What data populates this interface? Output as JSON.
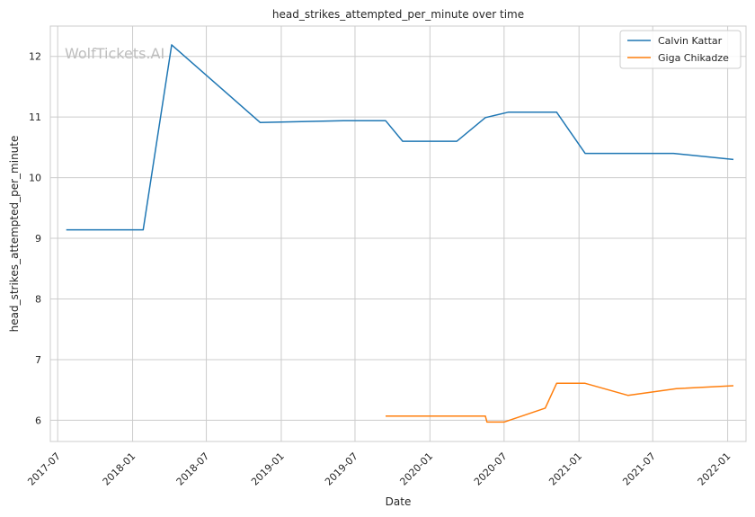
{
  "chart_data": {
    "type": "line",
    "title": "head_strikes_attempted_per_minute over time",
    "xlabel": "Date",
    "ylabel": "head_strikes_attempted_per_minute",
    "watermark": "WolfTickets.AI",
    "xlim": [
      "2017-06-13",
      "2022-02-15"
    ],
    "ylim": [
      5.65,
      12.5
    ],
    "x_ticks": [
      {
        "date": "2017-07-01",
        "label": "2017-07"
      },
      {
        "date": "2018-01-01",
        "label": "2018-01"
      },
      {
        "date": "2018-07-01",
        "label": "2018-07"
      },
      {
        "date": "2019-01-01",
        "label": "2019-01"
      },
      {
        "date": "2019-07-01",
        "label": "2019-07"
      },
      {
        "date": "2020-01-01",
        "label": "2020-01"
      },
      {
        "date": "2020-07-01",
        "label": "2020-07"
      },
      {
        "date": "2021-01-01",
        "label": "2021-01"
      },
      {
        "date": "2021-07-01",
        "label": "2021-07"
      },
      {
        "date": "2022-01-01",
        "label": "2022-01"
      }
    ],
    "y_ticks": [
      6,
      7,
      8,
      9,
      10,
      11,
      12
    ],
    "grid": true,
    "legend_position": "top-right",
    "series": [
      {
        "name": "Calvin Kattar",
        "color": "#1f77b4",
        "points": [
          {
            "x": "2017-07-22",
            "y": 9.14
          },
          {
            "x": "2018-01-27",
            "y": 9.14
          },
          {
            "x": "2018-04-07",
            "y": 12.19
          },
          {
            "x": "2018-11-10",
            "y": 10.91
          },
          {
            "x": "2019-06-08",
            "y": 10.94
          },
          {
            "x": "2019-09-14",
            "y": 10.94
          },
          {
            "x": "2019-10-26",
            "y": 10.6
          },
          {
            "x": "2020-03-07",
            "y": 10.6
          },
          {
            "x": "2020-05-16",
            "y": 10.99
          },
          {
            "x": "2020-07-11",
            "y": 11.08
          },
          {
            "x": "2020-11-07",
            "y": 11.08
          },
          {
            "x": "2021-01-16",
            "y": 10.4
          },
          {
            "x": "2021-08-21",
            "y": 10.4
          },
          {
            "x": "2022-01-15",
            "y": 10.3
          }
        ]
      },
      {
        "name": "Giga Chikadze",
        "color": "#ff7f0e",
        "points": [
          {
            "x": "2019-09-14",
            "y": 6.07
          },
          {
            "x": "2020-05-16",
            "y": 6.07
          },
          {
            "x": "2020-05-20",
            "y": 5.97
          },
          {
            "x": "2020-07-01",
            "y": 5.97
          },
          {
            "x": "2020-10-10",
            "y": 6.2
          },
          {
            "x": "2020-11-07",
            "y": 6.61
          },
          {
            "x": "2021-01-16",
            "y": 6.61
          },
          {
            "x": "2021-05-01",
            "y": 6.41
          },
          {
            "x": "2021-08-28",
            "y": 6.52
          },
          {
            "x": "2022-01-15",
            "y": 6.57
          }
        ]
      }
    ]
  }
}
